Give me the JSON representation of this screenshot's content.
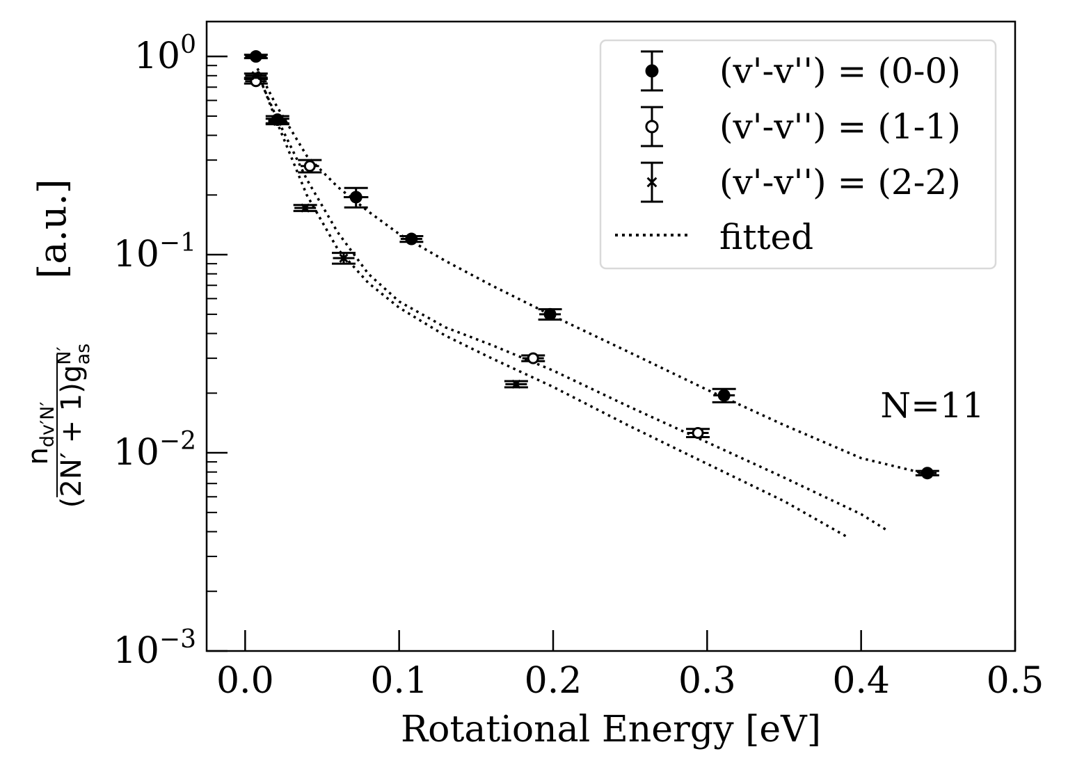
{
  "chart_data": {
    "type": "scatter",
    "xlabel": "Rotational Energy [eV]",
    "ylabel": {
      "numerator": "n",
      "numerator_sub": "dv′N′",
      "denominator": "(2N′ + 1)g",
      "denominator_sup": "N′",
      "denominator_sub": "as",
      "unit": "[a.u.]"
    },
    "xlim": [
      -0.025,
      0.5
    ],
    "ylim": [
      0.001,
      1.5
    ],
    "yscale": "log",
    "grid": false,
    "legend_position": "top-right",
    "annotation": "N=11",
    "xticks": [
      {
        "value": 0.0,
        "label": "0.0"
      },
      {
        "value": 0.1,
        "label": "0.1"
      },
      {
        "value": 0.2,
        "label": "0.2"
      },
      {
        "value": 0.3,
        "label": "0.3"
      },
      {
        "value": 0.4,
        "label": "0.4"
      },
      {
        "value": 0.5,
        "label": "0.5"
      }
    ],
    "yticks": [
      {
        "value": 1,
        "base": "10",
        "exp": "0"
      },
      {
        "value": 0.1,
        "base": "10",
        "exp": "−1"
      },
      {
        "value": 0.01,
        "base": "10",
        "exp": "−2"
      },
      {
        "value": 0.001,
        "base": "10",
        "exp": "−3"
      }
    ],
    "series": [
      {
        "name": "(v'-v'') = (0-0)",
        "marker": "filled-circle",
        "x": [
          0.007,
          0.021,
          0.072,
          0.108,
          0.198,
          0.311,
          0.443
        ],
        "y": [
          1.0,
          0.48,
          0.195,
          0.12,
          0.05,
          0.0195,
          0.0079
        ],
        "xerr": [
          0.007,
          0.006,
          0.008,
          0.007,
          0.007,
          0.007,
          0.006
        ],
        "yerr": [
          0.02,
          0.02,
          0.022,
          0.004,
          0.003,
          0.0015,
          0.0002
        ]
      },
      {
        "name": "(v'-v'') = (1-1)",
        "marker": "open-circle",
        "x": [
          0.007,
          0.042,
          0.187,
          0.294
        ],
        "y": [
          0.75,
          0.28,
          0.03,
          0.0126
        ],
        "xerr": [
          0.007,
          0.006,
          0.007,
          0.007
        ],
        "yerr": [
          0.02,
          0.02,
          0.001,
          0.0006
        ]
      },
      {
        "name": "(v'-v'') = (2-2)",
        "marker": "x",
        "x": [
          0.007,
          0.021,
          0.039,
          0.064,
          0.176
        ],
        "y": [
          0.8,
          0.47,
          0.172,
          0.096,
          0.0222
        ],
        "xerr": [
          0.007,
          0.006,
          0.007,
          0.007,
          0.007
        ],
        "yerr": [
          0.02,
          0.015,
          0.006,
          0.006,
          0.0008
        ]
      }
    ],
    "fits": [
      {
        "name": "fitted",
        "x": [
          0.008,
          0.02,
          0.04,
          0.06,
          0.08,
          0.1,
          0.13,
          0.16,
          0.2,
          0.25,
          0.3,
          0.35,
          0.4,
          0.443
        ],
        "y": [
          0.87,
          0.57,
          0.315,
          0.22,
          0.165,
          0.127,
          0.093,
          0.07,
          0.049,
          0.032,
          0.0208,
          0.0138,
          0.0094,
          0.0078
        ]
      },
      {
        "name": "fitted",
        "x": [
          0.008,
          0.02,
          0.04,
          0.06,
          0.08,
          0.1,
          0.13,
          0.16,
          0.2,
          0.25,
          0.3,
          0.35,
          0.4,
          0.416
        ],
        "y": [
          0.82,
          0.5,
          0.24,
          0.13,
          0.08,
          0.058,
          0.043,
          0.035,
          0.026,
          0.017,
          0.0113,
          0.0075,
          0.0049,
          0.0041
        ]
      },
      {
        "name": "fitted",
        "x": [
          0.008,
          0.02,
          0.04,
          0.06,
          0.08,
          0.1,
          0.13,
          0.16,
          0.2,
          0.25,
          0.3,
          0.35,
          0.39
        ],
        "y": [
          0.84,
          0.48,
          0.2,
          0.107,
          0.072,
          0.054,
          0.039,
          0.03,
          0.0215,
          0.0136,
          0.0088,
          0.0057,
          0.0038
        ]
      }
    ],
    "legend": [
      {
        "label": "(v'-v'') = (0-0)",
        "marker": "filled-circle",
        "errorbar": true
      },
      {
        "label": "(v'-v'') = (1-1)",
        "marker": "open-circle",
        "errorbar": true
      },
      {
        "label": "(v'-v'') = (2-2)",
        "marker": "x",
        "errorbar": true
      },
      {
        "label": "fitted",
        "marker": "dotted-line",
        "errorbar": false
      }
    ]
  }
}
